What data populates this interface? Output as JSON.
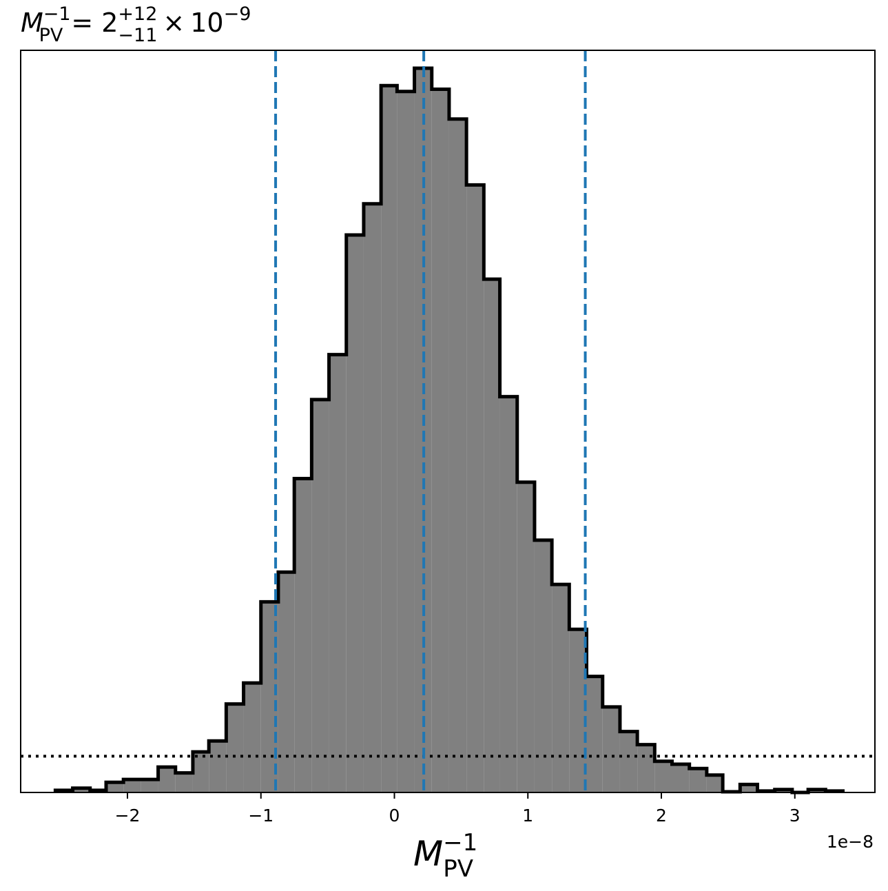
{
  "chart_data": {
    "type": "histogram",
    "title": {
      "var": "M",
      "var_sub": "PV",
      "var_sup": "−1",
      "equals": "=",
      "median": "2",
      "upper_err": "+12",
      "lower_err": "−11",
      "times": "×",
      "scale_base": "10",
      "scale_exp": "−9"
    },
    "xlabel": {
      "var": "M",
      "sub": "PV",
      "sup": "−1"
    },
    "x_offset_label": "1e−8",
    "xlim": [
      -2.8,
      3.6
    ],
    "ylim": [
      0,
      1.0
    ],
    "x_ticks": [
      -2,
      -1,
      0,
      1,
      2,
      3
    ],
    "x_tick_labels": [
      "−2",
      "−1",
      "0",
      "1",
      "2",
      "3"
    ],
    "y_ticks_visible": false,
    "bin_edges": [
      -2.54,
      -2.41,
      -2.28,
      -2.16,
      -2.03,
      -1.9,
      -1.77,
      -1.64,
      -1.51,
      -1.39,
      -1.26,
      -1.13,
      -1.0,
      -0.87,
      -0.75,
      -0.62,
      -0.49,
      -0.36,
      -0.23,
      -0.1,
      0.02,
      0.15,
      0.28,
      0.41,
      0.54,
      0.67,
      0.79,
      0.92,
      1.05,
      1.18,
      1.31,
      1.44,
      1.56,
      1.69,
      1.82,
      1.95,
      2.08,
      2.21,
      2.34,
      2.46,
      2.59,
      2.72,
      2.85,
      2.98,
      3.1,
      3.23,
      3.36
    ],
    "counts": [
      0.003,
      0.006,
      0.003,
      0.014,
      0.018,
      0.018,
      0.035,
      0.027,
      0.056,
      0.071,
      0.122,
      0.151,
      0.263,
      0.304,
      0.433,
      0.542,
      0.604,
      0.769,
      0.812,
      0.975,
      0.967,
      0.999,
      0.97,
      0.929,
      0.838,
      0.708,
      0.546,
      0.428,
      0.348,
      0.287,
      0.225,
      0.16,
      0.118,
      0.084,
      0.066,
      0.043,
      0.039,
      0.033,
      0.024,
      0.001,
      0.011,
      0.002,
      0.004,
      0.0,
      0.004,
      0.002
    ],
    "hist_fill": "#808080",
    "hist_edge": "#000000",
    "quantile_lines": [
      -0.89,
      0.22,
      1.43
    ],
    "quantile_color": "#1f77b4",
    "quantile_style": "dashed",
    "reference_line_y": 0.05,
    "reference_line_style": "dotted",
    "reference_line_color": "#000000",
    "grid": false
  }
}
